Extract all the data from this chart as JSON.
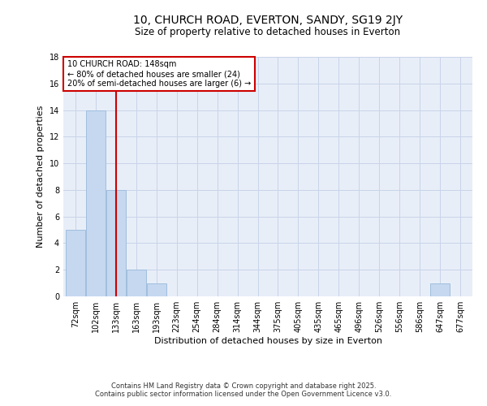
{
  "title1": "10, CHURCH ROAD, EVERTON, SANDY, SG19 2JY",
  "title2": "Size of property relative to detached houses in Everton",
  "xlabel": "Distribution of detached houses by size in Everton",
  "ylabel": "Number of detached properties",
  "bar_values": [
    5,
    14,
    8,
    2,
    1,
    0,
    0,
    0,
    0,
    0,
    0,
    0,
    0,
    0,
    0,
    0,
    0,
    0,
    1,
    0
  ],
  "categories": [
    "72sqm",
    "102sqm",
    "133sqm",
    "163sqm",
    "193sqm",
    "223sqm",
    "254sqm",
    "284sqm",
    "314sqm",
    "344sqm",
    "375sqm",
    "405sqm",
    "435sqm",
    "465sqm",
    "496sqm",
    "526sqm",
    "556sqm",
    "586sqm",
    "647sqm",
    "677sqm"
  ],
  "bar_color": "#c5d8f0",
  "bar_edge_color": "#a0bedd",
  "grid_color": "#c8d4e8",
  "bg_color": "#e8eef8",
  "annotation_box_color": "#cc0000",
  "red_line_x": 2,
  "annotation_text": "10 CHURCH ROAD: 148sqm\n← 80% of detached houses are smaller (24)\n20% of semi-detached houses are larger (6) →",
  "annotation_fontsize": 7.0,
  "ylim": [
    0,
    18
  ],
  "yticks": [
    0,
    2,
    4,
    6,
    8,
    10,
    12,
    14,
    16,
    18
  ],
  "footer": "Contains HM Land Registry data © Crown copyright and database right 2025.\nContains public sector information licensed under the Open Government Licence v3.0.",
  "title1_fontsize": 10,
  "title2_fontsize": 8.5,
  "xlabel_fontsize": 8,
  "ylabel_fontsize": 8,
  "tick_fontsize": 7,
  "footer_fontsize": 6
}
